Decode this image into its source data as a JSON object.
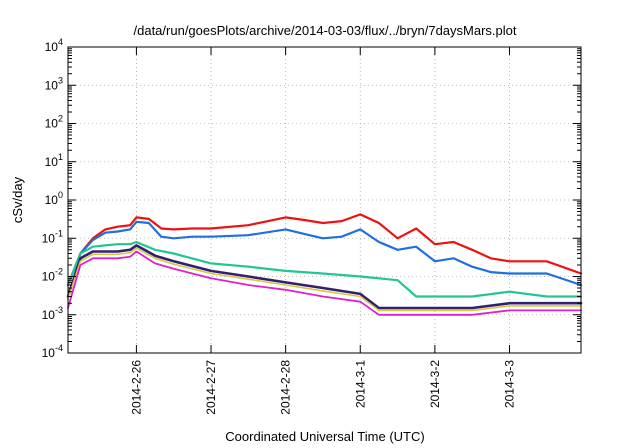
{
  "chart_data": {
    "type": "line",
    "title": "/data/run/goesPlots/archive/2014-03-03/flux/../bryn/7daysMars.plot",
    "xlabel": "Coordinated Universal Time (UTC)",
    "ylabel": "cSv/day",
    "y_scale": "log",
    "ylim": [
      0.0001,
      10000
    ],
    "y_ticks": [
      {
        "base": "10",
        "exp": "-4"
      },
      {
        "base": "10",
        "exp": "-3"
      },
      {
        "base": "10",
        "exp": "-2"
      },
      {
        "base": "10",
        "exp": "-1"
      },
      {
        "base": "10",
        "exp": "0"
      },
      {
        "base": "10",
        "exp": "1"
      },
      {
        "base": "10",
        "exp": "2"
      },
      {
        "base": "10",
        "exp": "3"
      },
      {
        "base": "10",
        "exp": "4"
      }
    ],
    "xlim": [
      "2014-02-25 02:00",
      "2014-03-03 23:00"
    ],
    "x_ticks": [
      "2014-2-26",
      "2014-2-27",
      "2014-2-28",
      "2014-3-1",
      "2014-3-2",
      "2014-3-3"
    ],
    "grid": true,
    "series": [
      {
        "color": "#ee1111",
        "width": 2.2,
        "x": [
          "2014-02-25 02:00",
          "2014-02-25 06:00",
          "2014-02-25 10:00",
          "2014-02-25 14:00",
          "2014-02-25 18:00",
          "2014-02-25 22:00",
          "2014-02-26 00:00",
          "2014-02-26 04:00",
          "2014-02-26 08:00",
          "2014-02-26 12:00",
          "2014-02-26 18:00",
          "2014-02-27 00:00",
          "2014-02-27 12:00",
          "2014-02-28 00:00",
          "2014-02-28 06:00",
          "2014-02-28 12:00",
          "2014-02-28 18:00",
          "2014-03-01 00:00",
          "2014-03-01 06:00",
          "2014-03-01 12:00",
          "2014-03-01 18:00",
          "2014-03-02 00:00",
          "2014-03-02 06:00",
          "2014-03-02 12:00",
          "2014-03-02 18:00",
          "2014-03-03 00:00",
          "2014-03-03 12:00",
          "2014-03-03 23:00"
        ],
        "y": [
          0.006,
          0.04,
          0.1,
          0.17,
          0.2,
          0.22,
          0.35,
          0.32,
          0.18,
          0.17,
          0.18,
          0.18,
          0.22,
          0.35,
          0.3,
          0.25,
          0.28,
          0.42,
          0.25,
          0.1,
          0.18,
          0.07,
          0.08,
          0.05,
          0.03,
          0.025,
          0.025,
          0.012
        ]
      },
      {
        "color": "#1f6fe0",
        "width": 2.2,
        "x": [
          "2014-02-25 02:00",
          "2014-02-25 06:00",
          "2014-02-25 10:00",
          "2014-02-25 14:00",
          "2014-02-25 18:00",
          "2014-02-25 22:00",
          "2014-02-26 00:00",
          "2014-02-26 04:00",
          "2014-02-26 08:00",
          "2014-02-26 12:00",
          "2014-02-26 18:00",
          "2014-02-27 00:00",
          "2014-02-27 12:00",
          "2014-02-28 00:00",
          "2014-02-28 06:00",
          "2014-02-28 12:00",
          "2014-02-28 18:00",
          "2014-03-01 00:00",
          "2014-03-01 06:00",
          "2014-03-01 12:00",
          "2014-03-01 18:00",
          "2014-03-02 00:00",
          "2014-03-02 06:00",
          "2014-03-02 12:00",
          "2014-03-02 18:00",
          "2014-03-03 00:00",
          "2014-03-03 12:00",
          "2014-03-03 23:00"
        ],
        "y": [
          0.006,
          0.04,
          0.09,
          0.14,
          0.15,
          0.17,
          0.27,
          0.25,
          0.11,
          0.1,
          0.11,
          0.11,
          0.12,
          0.17,
          0.13,
          0.1,
          0.11,
          0.17,
          0.08,
          0.05,
          0.06,
          0.025,
          0.03,
          0.018,
          0.013,
          0.012,
          0.012,
          0.006
        ]
      },
      {
        "color": "#22c593",
        "width": 2.2,
        "x": [
          "2014-02-25 02:00",
          "2014-02-25 06:00",
          "2014-02-25 10:00",
          "2014-02-25 14:00",
          "2014-02-25 18:00",
          "2014-02-25 22:00",
          "2014-02-26 00:00",
          "2014-02-26 06:00",
          "2014-02-26 12:00",
          "2014-02-27 00:00",
          "2014-02-27 12:00",
          "2014-02-28 00:00",
          "2014-02-28 12:00",
          "2014-03-01 00:00",
          "2014-03-01 12:00",
          "2014-03-01 18:00",
          "2014-03-02 00:00",
          "2014-03-02 12:00",
          "2014-03-03 00:00",
          "2014-03-03 12:00",
          "2014-03-03 23:00"
        ],
        "y": [
          0.006,
          0.04,
          0.06,
          0.065,
          0.07,
          0.07,
          0.08,
          0.05,
          0.04,
          0.022,
          0.018,
          0.014,
          0.012,
          0.01,
          0.008,
          0.003,
          0.003,
          0.003,
          0.004,
          0.003,
          0.003
        ]
      },
      {
        "color": "#33206a",
        "width": 2.6,
        "x": [
          "2014-02-25 02:00",
          "2014-02-25 06:00",
          "2014-02-25 10:00",
          "2014-02-25 14:00",
          "2014-02-25 18:00",
          "2014-02-25 22:00",
          "2014-02-26 00:00",
          "2014-02-26 06:00",
          "2014-02-26 12:00",
          "2014-02-27 00:00",
          "2014-02-27 12:00",
          "2014-02-28 00:00",
          "2014-02-28 12:00",
          "2014-03-01 00:00",
          "2014-03-01 06:00",
          "2014-03-01 12:00",
          "2014-03-02 00:00",
          "2014-03-02 12:00",
          "2014-03-03 00:00",
          "2014-03-03 12:00",
          "2014-03-03 23:00"
        ],
        "y": [
          0.003,
          0.03,
          0.045,
          0.045,
          0.045,
          0.05,
          0.065,
          0.035,
          0.025,
          0.014,
          0.01,
          0.007,
          0.005,
          0.0035,
          0.0015,
          0.0015,
          0.0015,
          0.0015,
          0.002,
          0.002,
          0.002
        ]
      },
      {
        "color": "#d4c94a",
        "width": 1.6,
        "x": [
          "2014-02-25 02:00",
          "2014-02-25 06:00",
          "2014-02-25 10:00",
          "2014-02-25 14:00",
          "2014-02-25 18:00",
          "2014-02-25 22:00",
          "2014-02-26 00:00",
          "2014-02-26 06:00",
          "2014-02-26 12:00",
          "2014-02-27 00:00",
          "2014-02-27 12:00",
          "2014-02-28 00:00",
          "2014-02-28 12:00",
          "2014-03-01 00:00",
          "2014-03-01 06:00",
          "2014-03-01 12:00",
          "2014-03-02 00:00",
          "2014-03-02 12:00",
          "2014-03-03 00:00",
          "2014-03-03 12:00",
          "2014-03-03 23:00"
        ],
        "y": [
          0.0025,
          0.025,
          0.038,
          0.038,
          0.038,
          0.042,
          0.055,
          0.03,
          0.021,
          0.012,
          0.0085,
          0.006,
          0.0042,
          0.003,
          0.0013,
          0.0013,
          0.0013,
          0.0013,
          0.0017,
          0.0017,
          0.0017
        ]
      },
      {
        "color": "#dd22cc",
        "width": 1.8,
        "x": [
          "2014-02-25 02:00",
          "2014-02-25 06:00",
          "2014-02-25 10:00",
          "2014-02-25 14:00",
          "2014-02-25 18:00",
          "2014-02-25 22:00",
          "2014-02-26 00:00",
          "2014-02-26 06:00",
          "2014-02-26 12:00",
          "2014-02-27 00:00",
          "2014-02-27 12:00",
          "2014-02-28 00:00",
          "2014-02-28 12:00",
          "2014-03-01 00:00",
          "2014-03-01 06:00",
          "2014-03-01 12:00",
          "2014-03-02 00:00",
          "2014-03-02 12:00",
          "2014-03-03 00:00",
          "2014-03-03 12:00",
          "2014-03-03 23:00"
        ],
        "y": [
          0.0015,
          0.02,
          0.03,
          0.03,
          0.03,
          0.033,
          0.045,
          0.022,
          0.016,
          0.009,
          0.006,
          0.0045,
          0.003,
          0.0022,
          0.001,
          0.001,
          0.001,
          0.001,
          0.0013,
          0.0013,
          0.0013
        ]
      }
    ]
  }
}
